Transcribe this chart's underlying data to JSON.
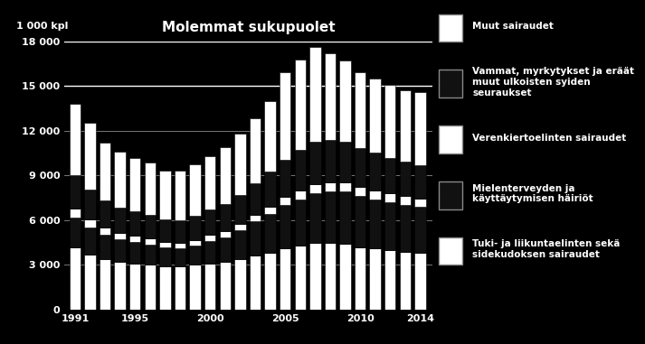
{
  "title": "Molemmat sukupuolet",
  "ylabel": "1 000 kpl",
  "background_color": "#000000",
  "text_color": "#ffffff",
  "years": [
    1991,
    1992,
    1993,
    1994,
    1995,
    1996,
    1997,
    1998,
    1999,
    2000,
    2001,
    2002,
    2003,
    2004,
    2005,
    2006,
    2007,
    2008,
    2009,
    2010,
    2011,
    2012,
    2013,
    2014
  ],
  "series": {
    "tuki": [
      4200,
      3700,
      3400,
      3200,
      3100,
      3000,
      2900,
      2900,
      3000,
      3100,
      3200,
      3400,
      3600,
      3800,
      4100,
      4300,
      4500,
      4500,
      4400,
      4200,
      4100,
      4000,
      3900,
      3800
    ],
    "mieli": [
      2000,
      1800,
      1600,
      1500,
      1450,
      1350,
      1250,
      1200,
      1300,
      1500,
      1650,
      1900,
      2300,
      2600,
      2900,
      3100,
      3300,
      3400,
      3500,
      3400,
      3300,
      3200,
      3150,
      3100
    ],
    "veren": [
      600,
      550,
      500,
      460,
      430,
      410,
      390,
      375,
      385,
      400,
      425,
      455,
      480,
      510,
      555,
      610,
      640,
      660,
      655,
      625,
      605,
      585,
      565,
      555
    ],
    "vammat": [
      2200,
      2000,
      1800,
      1700,
      1600,
      1580,
      1500,
      1490,
      1590,
      1700,
      1820,
      1950,
      2120,
      2330,
      2520,
      2720,
      2820,
      2810,
      2710,
      2610,
      2510,
      2410,
      2310,
      2210
    ],
    "muut": [
      4800,
      4500,
      3900,
      3750,
      3600,
      3500,
      3300,
      3350,
      3450,
      3600,
      3800,
      4100,
      4350,
      4750,
      5850,
      6050,
      6350,
      5800,
      5450,
      5100,
      5000,
      4900,
      4800,
      4900
    ]
  },
  "series_labels": [
    "Tuki- ja liikuntaelinten sekä\nsidekudoksen sairaudet",
    "Mielenterveyden ja\nkäyttäytymisen häiriöt",
    "Verenkiertoelinten sairaudet",
    "Vammat, myrkytykset ja eräät\nmuut ulkoisten syiden\nseuraukset",
    "Muut sairaudet"
  ],
  "fill_colors": [
    "#ffffff",
    "#111111",
    "#ffffff",
    "#111111",
    "#ffffff"
  ],
  "ylim": [
    0,
    18000
  ],
  "yticks": [
    0,
    3000,
    6000,
    9000,
    12000,
    15000,
    18000
  ],
  "ytick_labels": [
    "0",
    "3 000",
    "6 000",
    "9 000",
    "12 000",
    "15 000",
    "18 000"
  ],
  "xtick_years": [
    1991,
    1995,
    2000,
    2005,
    2010,
    2014
  ],
  "bar_width": 0.75,
  "title_fontsize": 11,
  "tick_fontsize": 8,
  "legend_fontsize": 7.5
}
